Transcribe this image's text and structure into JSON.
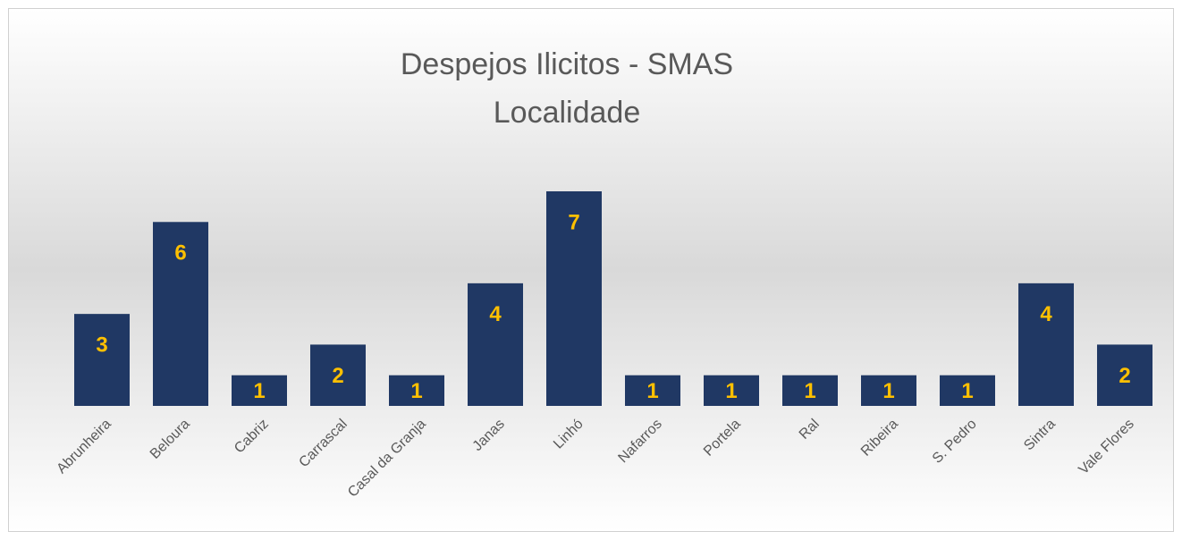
{
  "chart_data": {
    "type": "bar",
    "title": "Despejos Ilicitos - SMAS",
    "subtitle": "Localidade",
    "categories": [
      "Abrunheira",
      "Beloura",
      "Cabriz",
      "Carrascal",
      "Casal da Granja",
      "Janas",
      "Linhó",
      "Nafarros",
      "Portela",
      "Ral",
      "Ribeira",
      "S. Pedro",
      "Sintra",
      "Vale Flores"
    ],
    "values": [
      3,
      6,
      1,
      2,
      1,
      4,
      7,
      1,
      1,
      1,
      1,
      1,
      4,
      2
    ],
    "color": "#203864",
    "label_color": "#ffc000",
    "ylim": [
      0,
      7
    ]
  }
}
